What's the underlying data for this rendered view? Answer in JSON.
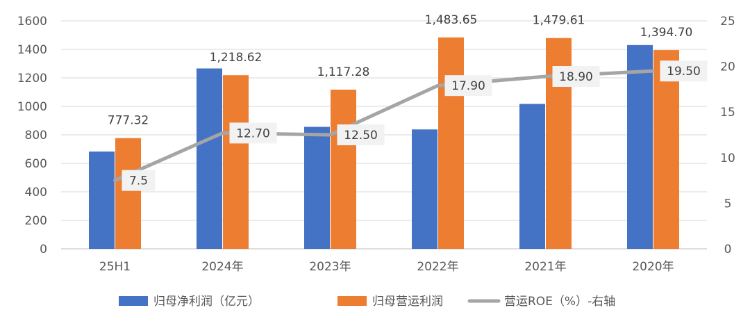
{
  "chart_data": {
    "type": "bar",
    "categories": [
      "25H1",
      "2024年",
      "2023年",
      "2022年",
      "2021年",
      "2020年"
    ],
    "series": [
      {
        "name": "归母净利润（亿元）",
        "kind": "bar",
        "axis": "left",
        "color": "#4472C4",
        "values": [
          683,
          1266,
          856,
          838,
          1017,
          1430
        ],
        "labels": [
          "",
          "",
          "",
          "",
          "",
          ""
        ]
      },
      {
        "name": "归母营运利润",
        "kind": "bar",
        "axis": "left",
        "color": "#ED7D31",
        "values": [
          777.32,
          1218.62,
          1117.28,
          1483.65,
          1479.61,
          1394.7
        ],
        "labels": [
          "777.32",
          "1,218.62",
          "1,117.28",
          "1,483.65",
          "1,479.61",
          "1,394.70"
        ]
      },
      {
        "name": "营运ROE（%）-右轴",
        "kind": "line",
        "axis": "right",
        "color": "#A5A5A5",
        "values": [
          7.5,
          12.7,
          12.5,
          17.9,
          18.9,
          19.5
        ],
        "labels": [
          "7.5",
          "12.70",
          "12.50",
          "17.90",
          "18.90",
          "19.50"
        ]
      }
    ],
    "y_left": {
      "min": 0,
      "max": 1600,
      "step": 200
    },
    "y_right": {
      "min": 0,
      "max": 25,
      "step": 5
    },
    "grid": true,
    "legend": "bottom"
  }
}
